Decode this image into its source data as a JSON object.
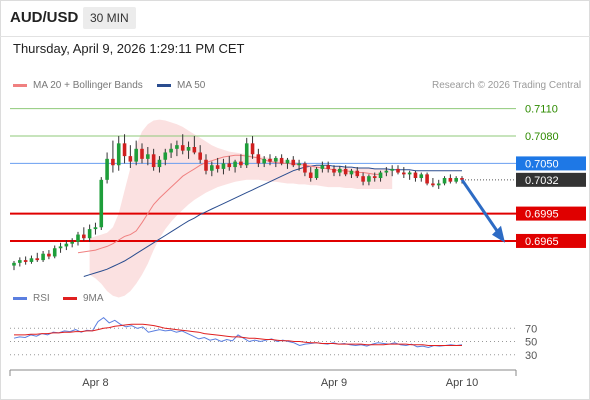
{
  "header": {
    "symbol": "AUD/USD",
    "timeframe": "30 MIN"
  },
  "datetime": "Thursday, April 9, 2026 1:29:11 PM CET",
  "credit": "Research © 2026 Trading Central",
  "legend": {
    "ma20": {
      "label": "MA 20 + Bollinger Bands",
      "color": "#f08080"
    },
    "ma50": {
      "label": "MA 50",
      "color": "#2a4d8f"
    }
  },
  "rsi_legend": {
    "rsi": {
      "label": "RSI",
      "color": "#5b7fe0"
    },
    "ma9": {
      "label": "9MA",
      "color": "#e02020"
    }
  },
  "chart_data": {
    "type": "candlestick",
    "price_axis": {
      "min": 0.692,
      "max": 0.7125
    },
    "levels": [
      {
        "value": 0.711,
        "label": "0.7110",
        "color": "#2e8b00",
        "kind": "resistance",
        "line": "#8fc97a"
      },
      {
        "value": 0.708,
        "label": "0.7080",
        "color": "#2e8b00",
        "kind": "resistance",
        "line": "#8fc97a"
      },
      {
        "value": 0.705,
        "label": "0.7050",
        "color": "#1565c0",
        "kind": "pivot",
        "line": "#6a9ef0",
        "badge": "#1e78e6"
      },
      {
        "value": 0.7032,
        "label": "0.7032",
        "color": "#333333",
        "kind": "last",
        "line": "dotted",
        "badge": "#333333"
      },
      {
        "value": 0.6995,
        "label": "0.6995",
        "color": "#e00000",
        "kind": "support",
        "line": "#e00000",
        "badge": "#e00000"
      },
      {
        "value": 0.6965,
        "label": "0.6965",
        "color": "#e00000",
        "kind": "support",
        "line": "#e00000",
        "badge": "#e00000"
      }
    ],
    "x_labels": [
      "Apr 8",
      "Apr 9",
      "Apr 10"
    ],
    "candles": [
      {
        "o": 0.6938,
        "h": 0.6943,
        "l": 0.6933,
        "c": 0.6941
      },
      {
        "o": 0.6941,
        "h": 0.6947,
        "l": 0.6937,
        "c": 0.6944
      },
      {
        "o": 0.6944,
        "h": 0.6948,
        "l": 0.6939,
        "c": 0.6942
      },
      {
        "o": 0.6942,
        "h": 0.6949,
        "l": 0.694,
        "c": 0.6946
      },
      {
        "o": 0.6946,
        "h": 0.6952,
        "l": 0.6942,
        "c": 0.6944
      },
      {
        "o": 0.6944,
        "h": 0.6954,
        "l": 0.6942,
        "c": 0.6951
      },
      {
        "o": 0.6951,
        "h": 0.6955,
        "l": 0.6945,
        "c": 0.6948
      },
      {
        "o": 0.6948,
        "h": 0.696,
        "l": 0.6946,
        "c": 0.6957
      },
      {
        "o": 0.6957,
        "h": 0.6963,
        "l": 0.6952,
        "c": 0.6959
      },
      {
        "o": 0.6959,
        "h": 0.6966,
        "l": 0.6955,
        "c": 0.6962
      },
      {
        "o": 0.6962,
        "h": 0.6968,
        "l": 0.6958,
        "c": 0.6964
      },
      {
        "o": 0.6964,
        "h": 0.6975,
        "l": 0.696,
        "c": 0.6972
      },
      {
        "o": 0.6972,
        "h": 0.698,
        "l": 0.6965,
        "c": 0.6968
      },
      {
        "o": 0.6968,
        "h": 0.6983,
        "l": 0.6964,
        "c": 0.6978
      },
      {
        "o": 0.6978,
        "h": 0.6985,
        "l": 0.6972,
        "c": 0.698
      },
      {
        "o": 0.698,
        "h": 0.7035,
        "l": 0.6977,
        "c": 0.7032
      },
      {
        "o": 0.7032,
        "h": 0.7062,
        "l": 0.7028,
        "c": 0.7055
      },
      {
        "o": 0.7055,
        "h": 0.7075,
        "l": 0.704,
        "c": 0.7048
      },
      {
        "o": 0.7048,
        "h": 0.708,
        "l": 0.7042,
        "c": 0.7072
      },
      {
        "o": 0.7072,
        "h": 0.7082,
        "l": 0.705,
        "c": 0.7058
      },
      {
        "o": 0.7058,
        "h": 0.707,
        "l": 0.7045,
        "c": 0.7052
      },
      {
        "o": 0.7052,
        "h": 0.7075,
        "l": 0.7048,
        "c": 0.7066
      },
      {
        "o": 0.7066,
        "h": 0.7072,
        "l": 0.705,
        "c": 0.7055
      },
      {
        "o": 0.7055,
        "h": 0.7068,
        "l": 0.7048,
        "c": 0.706
      },
      {
        "o": 0.706,
        "h": 0.7066,
        "l": 0.7042,
        "c": 0.7046
      },
      {
        "o": 0.7046,
        "h": 0.7058,
        "l": 0.704,
        "c": 0.7054
      },
      {
        "o": 0.7054,
        "h": 0.7066,
        "l": 0.7048,
        "c": 0.7062
      },
      {
        "o": 0.7062,
        "h": 0.7072,
        "l": 0.7056,
        "c": 0.7066
      },
      {
        "o": 0.7066,
        "h": 0.7075,
        "l": 0.7058,
        "c": 0.707
      },
      {
        "o": 0.707,
        "h": 0.7082,
        "l": 0.706,
        "c": 0.7064
      },
      {
        "o": 0.7064,
        "h": 0.7074,
        "l": 0.7055,
        "c": 0.7068
      },
      {
        "o": 0.7068,
        "h": 0.708,
        "l": 0.706,
        "c": 0.7062
      },
      {
        "o": 0.7062,
        "h": 0.707,
        "l": 0.705,
        "c": 0.7054
      },
      {
        "o": 0.7054,
        "h": 0.706,
        "l": 0.7038,
        "c": 0.7042
      },
      {
        "o": 0.7042,
        "h": 0.7052,
        "l": 0.7036,
        "c": 0.7048
      },
      {
        "o": 0.7048,
        "h": 0.7056,
        "l": 0.704,
        "c": 0.7044
      },
      {
        "o": 0.7044,
        "h": 0.7055,
        "l": 0.7038,
        "c": 0.705
      },
      {
        "o": 0.705,
        "h": 0.7058,
        "l": 0.7042,
        "c": 0.7046
      },
      {
        "o": 0.7046,
        "h": 0.7054,
        "l": 0.704,
        "c": 0.7052
      },
      {
        "o": 0.7052,
        "h": 0.706,
        "l": 0.7045,
        "c": 0.7048
      },
      {
        "o": 0.7048,
        "h": 0.7078,
        "l": 0.7045,
        "c": 0.7072
      },
      {
        "o": 0.7072,
        "h": 0.708,
        "l": 0.7055,
        "c": 0.706
      },
      {
        "o": 0.706,
        "h": 0.7066,
        "l": 0.7046,
        "c": 0.705
      },
      {
        "o": 0.705,
        "h": 0.7058,
        "l": 0.7046,
        "c": 0.7055
      },
      {
        "o": 0.7055,
        "h": 0.706,
        "l": 0.7048,
        "c": 0.7052
      },
      {
        "o": 0.7052,
        "h": 0.7058,
        "l": 0.7046,
        "c": 0.7056
      },
      {
        "o": 0.7056,
        "h": 0.706,
        "l": 0.7048,
        "c": 0.705
      },
      {
        "o": 0.705,
        "h": 0.7056,
        "l": 0.7044,
        "c": 0.7054
      },
      {
        "o": 0.7054,
        "h": 0.7058,
        "l": 0.7046,
        "c": 0.7048
      },
      {
        "o": 0.7048,
        "h": 0.7054,
        "l": 0.7042,
        "c": 0.705
      },
      {
        "o": 0.705,
        "h": 0.7052,
        "l": 0.7036,
        "c": 0.704
      },
      {
        "o": 0.704,
        "h": 0.7046,
        "l": 0.703,
        "c": 0.7034
      },
      {
        "o": 0.7034,
        "h": 0.7046,
        "l": 0.7032,
        "c": 0.7044
      },
      {
        "o": 0.7044,
        "h": 0.7052,
        "l": 0.704,
        "c": 0.7048
      },
      {
        "o": 0.7048,
        "h": 0.7052,
        "l": 0.704,
        "c": 0.7044
      },
      {
        "o": 0.7044,
        "h": 0.7048,
        "l": 0.7036,
        "c": 0.704
      },
      {
        "o": 0.704,
        "h": 0.7047,
        "l": 0.7036,
        "c": 0.7044
      },
      {
        "o": 0.7044,
        "h": 0.7048,
        "l": 0.7036,
        "c": 0.7038
      },
      {
        "o": 0.7038,
        "h": 0.7044,
        "l": 0.7034,
        "c": 0.7042
      },
      {
        "o": 0.7042,
        "h": 0.7046,
        "l": 0.7034,
        "c": 0.7036
      },
      {
        "o": 0.7036,
        "h": 0.704,
        "l": 0.7026,
        "c": 0.703
      },
      {
        "o": 0.703,
        "h": 0.7038,
        "l": 0.7026,
        "c": 0.7036
      },
      {
        "o": 0.7036,
        "h": 0.704,
        "l": 0.703,
        "c": 0.7034
      },
      {
        "o": 0.7034,
        "h": 0.7042,
        "l": 0.703,
        "c": 0.704
      },
      {
        "o": 0.704,
        "h": 0.7046,
        "l": 0.7036,
        "c": 0.7042
      },
      {
        "o": 0.7042,
        "h": 0.7048,
        "l": 0.7036,
        "c": 0.7044
      },
      {
        "o": 0.7044,
        "h": 0.7048,
        "l": 0.7038,
        "c": 0.704
      },
      {
        "o": 0.704,
        "h": 0.7046,
        "l": 0.7034,
        "c": 0.7038
      },
      {
        "o": 0.7038,
        "h": 0.7042,
        "l": 0.7032,
        "c": 0.704
      },
      {
        "o": 0.704,
        "h": 0.7042,
        "l": 0.703,
        "c": 0.7034
      },
      {
        "o": 0.7034,
        "h": 0.704,
        "l": 0.703,
        "c": 0.7038
      },
      {
        "o": 0.7038,
        "h": 0.704,
        "l": 0.7026,
        "c": 0.7028
      },
      {
        "o": 0.7028,
        "h": 0.7034,
        "l": 0.7024,
        "c": 0.7026
      },
      {
        "o": 0.7026,
        "h": 0.7032,
        "l": 0.7022,
        "c": 0.7028
      },
      {
        "o": 0.7028,
        "h": 0.7036,
        "l": 0.7026,
        "c": 0.7034
      },
      {
        "o": 0.7034,
        "h": 0.7038,
        "l": 0.7028,
        "c": 0.703
      },
      {
        "o": 0.703,
        "h": 0.7036,
        "l": 0.7028,
        "c": 0.7034
      },
      {
        "o": 0.7034,
        "h": 0.7036,
        "l": 0.7028,
        "c": 0.7032
      }
    ],
    "ma20": [
      0.6952,
      0.6953,
      0.6954,
      0.6955,
      0.6957,
      0.6959,
      0.6962,
      0.6966,
      0.697,
      0.6972,
      0.6976,
      0.6985,
      0.6995,
      0.7005,
      0.7012,
      0.7018,
      0.7024,
      0.703,
      0.7036,
      0.704,
      0.7044,
      0.7048,
      0.7051,
      0.7053,
      0.7055,
      0.7057,
      0.7058,
      0.7059,
      0.7059,
      0.7058,
      0.7057,
      0.7056,
      0.7054,
      0.7052,
      0.7051,
      0.705,
      0.705,
      0.7049,
      0.7049,
      0.7048,
      0.7047,
      0.7046,
      0.7045,
      0.7044,
      0.7043,
      0.7042,
      0.7042,
      0.7041,
      0.704,
      0.704,
      0.7039,
      0.7038,
      0.7038
    ],
    "ma20_start": 11,
    "ma50": [
      0.6926,
      0.6928,
      0.693,
      0.6932,
      0.6934,
      0.6937,
      0.694,
      0.6943,
      0.6947,
      0.6951,
      0.6955,
      0.6959,
      0.6963,
      0.6967,
      0.6971,
      0.6975,
      0.6979,
      0.6983,
      0.6987,
      0.699,
      0.6994,
      0.6997,
      0.7,
      0.7003,
      0.7006,
      0.7009,
      0.7012,
      0.7015,
      0.7018,
      0.7021,
      0.7024,
      0.7027,
      0.703,
      0.7033,
      0.7036,
      0.7039,
      0.7042,
      0.7044,
      0.7046,
      0.7047,
      0.7048,
      0.7048,
      0.7048,
      0.7047,
      0.7047,
      0.7046,
      0.7046,
      0.7045,
      0.7045,
      0.7045,
      0.7044,
      0.7044,
      0.7044,
      0.7043,
      0.7043,
      0.7043,
      0.7043,
      0.7042,
      0.7042,
      0.7042,
      0.7042,
      0.7042,
      0.7042,
      0.7042,
      0.7042,
      0.7042
    ],
    "bb_upper": [
      0.6968,
      0.697,
      0.6972,
      0.6974,
      0.698,
      0.6995,
      0.702,
      0.7045,
      0.707,
      0.7085,
      0.7093,
      0.7097,
      0.7098,
      0.7097,
      0.7095,
      0.7093,
      0.709,
      0.7086,
      0.7082,
      0.7078,
      0.7074,
      0.707,
      0.7067,
      0.7065,
      0.7063,
      0.7062,
      0.7061,
      0.706,
      0.7059,
      0.7058,
      0.7057,
      0.7056,
      0.7055,
      0.7054,
      0.7053,
      0.7052,
      0.7051,
      0.705,
      0.7049,
      0.7048,
      0.7047,
      0.7047,
      0.7046,
      0.7046,
      0.7046,
      0.7045,
      0.7045,
      0.7045,
      0.7045,
      0.7044,
      0.7044,
      0.7044,
      0.7044
    ],
    "bb_lower": [
      0.6928,
      0.6924,
      0.6918,
      0.691,
      0.6905,
      0.6903,
      0.6905,
      0.691,
      0.6918,
      0.6928,
      0.694,
      0.6955,
      0.6968,
      0.6978,
      0.6986,
      0.6993,
      0.6999,
      0.7005,
      0.701,
      0.7014,
      0.7018,
      0.7021,
      0.7024,
      0.7026,
      0.7028,
      0.703,
      0.7031,
      0.7032,
      0.7032,
      0.7032,
      0.7031,
      0.703,
      0.703,
      0.7029,
      0.7028,
      0.7028,
      0.7027,
      0.7027,
      0.7026,
      0.7026,
      0.7025,
      0.7024,
      0.7024,
      0.7024,
      0.7023,
      0.7023,
      0.7022,
      0.7022,
      0.7022,
      0.7022,
      0.7022,
      0.7022,
      0.7022
    ],
    "bb_start": 13,
    "arrow": {
      "from": 0.7032,
      "to": 0.6963
    },
    "rsi_axis": {
      "min": 10,
      "max": 90,
      "ticks": [
        70,
        50,
        30
      ]
    },
    "rsi": [
      55,
      57,
      56,
      60,
      58,
      62,
      60,
      64,
      63,
      66,
      65,
      68,
      64,
      67,
      66,
      80,
      86,
      78,
      82,
      76,
      72,
      74,
      70,
      72,
      64,
      66,
      68,
      66,
      67,
      64,
      66,
      62,
      58,
      54,
      56,
      52,
      54,
      50,
      53,
      51,
      60,
      55,
      50,
      52,
      50,
      52,
      54,
      50,
      52,
      50,
      48,
      44,
      46,
      47,
      48,
      47,
      46,
      48,
      46,
      47,
      45,
      44,
      45,
      43,
      46,
      48,
      47,
      46,
      48,
      45,
      44,
      46,
      42,
      43,
      41,
      44,
      43,
      44,
      45,
      44,
      45
    ],
    "rsi_ma9": [
      60,
      60,
      60,
      61,
      61,
      62,
      62,
      63,
      63,
      64,
      64,
      65,
      65,
      66,
      66,
      68,
      70,
      71,
      73,
      74,
      75,
      76,
      76,
      76,
      75,
      74,
      72,
      70,
      69,
      68,
      67,
      66,
      65,
      64,
      62,
      61,
      60,
      59,
      58,
      57,
      57,
      56,
      55,
      55,
      54,
      53,
      53,
      52,
      51,
      51,
      50,
      50,
      49,
      48,
      48,
      47,
      47,
      47,
      46,
      46,
      46,
      46,
      46,
      45,
      45,
      45,
      45,
      46,
      46,
      46,
      46,
      45,
      45,
      45,
      44,
      44,
      44,
      44,
      44,
      44,
      44
    ]
  }
}
